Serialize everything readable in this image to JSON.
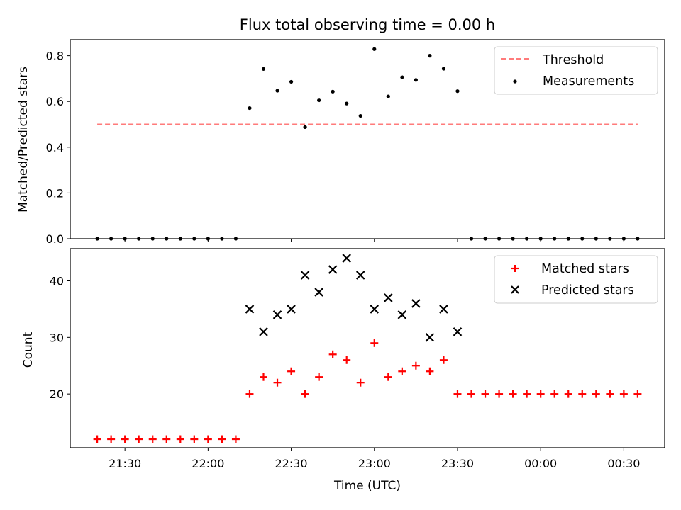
{
  "chart_data": [
    {
      "type": "scatter",
      "title": "Flux total observing time = 0.00 h",
      "xlabel": "",
      "ylabel": "Matched/Predicted stars",
      "ylim": [
        0,
        0.87
      ],
      "yticks": [
        0.0,
        0.2,
        0.4,
        0.6,
        0.8
      ],
      "ytick_labels": [
        "0.0",
        "0.2",
        "0.4",
        "0.6",
        "0.8"
      ],
      "grid": false,
      "legend": "top-right",
      "x": [
        "21:20",
        "21:25",
        "21:30",
        "21:35",
        "21:40",
        "21:45",
        "21:50",
        "21:55",
        "22:00",
        "22:05",
        "22:10",
        "22:15",
        "22:20",
        "22:25",
        "22:30",
        "22:35",
        "22:40",
        "22:45",
        "22:50",
        "22:55",
        "23:00",
        "23:05",
        "23:10",
        "23:15",
        "23:20",
        "23:25",
        "23:30",
        "23:35",
        "23:40",
        "23:45",
        "23:50",
        "23:55",
        "00:00",
        "00:05",
        "00:10",
        "00:15",
        "00:20",
        "00:25",
        "00:30",
        "00:35"
      ],
      "series": [
        {
          "name": "Measurements",
          "marker": "dot",
          "color": "#000000",
          "values": [
            0,
            0,
            0,
            0,
            0,
            0,
            0,
            0,
            0,
            0,
            0,
            0.571,
            0.742,
            0.647,
            0.686,
            0.488,
            0.605,
            0.643,
            0.591,
            0.537,
            0.829,
            0.622,
            0.706,
            0.694,
            0.8,
            0.743,
            0.645,
            0,
            0,
            0,
            0,
            0,
            0,
            0,
            0,
            0,
            0,
            0,
            0,
            0
          ]
        },
        {
          "name": "Threshold",
          "style": "dashed-line",
          "color": "#ff7b7b",
          "x_range": [
            "21:20",
            "00:35"
          ],
          "value": 0.5
        }
      ]
    },
    {
      "type": "scatter",
      "title": "",
      "xlabel": "Time (UTC)",
      "ylabel": "Count",
      "ylim": [
        10.5,
        45.7
      ],
      "yticks": [
        20,
        30,
        40
      ],
      "ytick_labels": [
        "20",
        "30",
        "40"
      ],
      "xtick_labels": [
        "21:30",
        "22:00",
        "22:30",
        "23:00",
        "23:30",
        "00:00",
        "00:30"
      ],
      "grid": false,
      "legend": "top-right",
      "x": [
        "21:20",
        "21:25",
        "21:30",
        "21:35",
        "21:40",
        "21:45",
        "21:50",
        "21:55",
        "22:00",
        "22:05",
        "22:10",
        "22:15",
        "22:20",
        "22:25",
        "22:30",
        "22:35",
        "22:40",
        "22:45",
        "22:50",
        "22:55",
        "23:00",
        "23:05",
        "23:10",
        "23:15",
        "23:20",
        "23:25",
        "23:30",
        "23:35",
        "23:40",
        "23:45",
        "23:50",
        "23:55",
        "00:00",
        "00:05",
        "00:10",
        "00:15",
        "00:20",
        "00:25",
        "00:30",
        "00:35"
      ],
      "series": [
        {
          "name": "Matched stars",
          "marker": "plus",
          "color": "#ff0000",
          "values": [
            12,
            12,
            12,
            12,
            12,
            12,
            12,
            12,
            12,
            12,
            12,
            20,
            23,
            22,
            24,
            20,
            23,
            27,
            26,
            22,
            29,
            23,
            24,
            25,
            24,
            26,
            20,
            20,
            20,
            20,
            20,
            20,
            20,
            20,
            20,
            20,
            20,
            20,
            20,
            20
          ]
        },
        {
          "name": "Predicted stars",
          "marker": "x",
          "color": "#000000",
          "x": [
            "22:15",
            "22:20",
            "22:25",
            "22:30",
            "22:35",
            "22:40",
            "22:45",
            "22:50",
            "22:55",
            "23:00",
            "23:05",
            "23:10",
            "23:15",
            "23:20",
            "23:25",
            "23:30"
          ],
          "values": [
            35,
            31,
            34,
            35,
            41,
            38,
            42,
            44,
            41,
            35,
            37,
            34,
            36,
            30,
            35,
            31
          ]
        }
      ]
    }
  ]
}
